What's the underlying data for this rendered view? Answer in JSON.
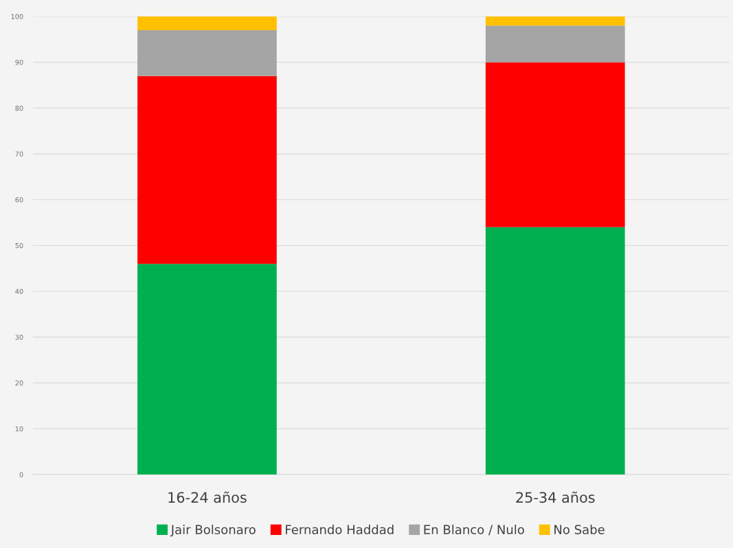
{
  "chart_data": {
    "type": "bar",
    "stacked": true,
    "categories": [
      "16-24 años",
      "25-34 años"
    ],
    "series": [
      {
        "name": "Jair Bolsonaro",
        "color": "#00b050",
        "values": [
          46,
          54
        ]
      },
      {
        "name": "Fernando Haddad",
        "color": "#ff0000",
        "values": [
          41,
          36
        ]
      },
      {
        "name": "En Blanco / Nulo",
        "color": "#a5a5a5",
        "values": [
          10,
          8
        ]
      },
      {
        "name": "No Sabe",
        "color": "#ffc000",
        "values": [
          3,
          2
        ]
      }
    ],
    "ylim": [
      0,
      100
    ],
    "yticks": [
      0,
      10,
      20,
      30,
      40,
      50,
      60,
      70,
      80,
      90,
      100
    ],
    "grid": "y",
    "legend": "bottom"
  }
}
